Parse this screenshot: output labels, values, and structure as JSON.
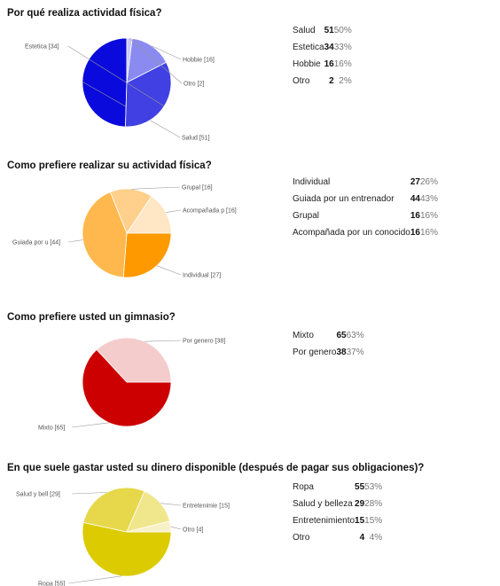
{
  "chart_data": [
    {
      "type": "pie",
      "title": "Por qué realiza actividad física?",
      "slices": [
        {
          "label": "Salud",
          "short": "Salud",
          "value": 51,
          "percent": "50%",
          "color": "#0A0ADC"
        },
        {
          "label": "Estetica",
          "short": "Estetica",
          "value": 34,
          "percent": "33%",
          "color": "#4040E3"
        },
        {
          "label": "Hobbie",
          "short": "Hobbie",
          "value": 16,
          "percent": "16%",
          "color": "#8A8AF0"
        },
        {
          "label": "Otro",
          "short": "Otro",
          "value": 2,
          "percent": "2%",
          "color": "#C8C8F8"
        }
      ]
    },
    {
      "type": "pie",
      "title": "Como prefiere realizar su actividad física?",
      "slices": [
        {
          "label": "Individual",
          "short": "Individual",
          "value": 27,
          "percent": "26%",
          "color": "#FF9900"
        },
        {
          "label": "Guiada por un entrenador",
          "short": "Guiada por u",
          "value": 44,
          "percent": "43%",
          "color": "#FFB84D"
        },
        {
          "label": "Grupal",
          "short": "Grupal",
          "value": 16,
          "percent": "16%",
          "color": "#FFCF8C"
        },
        {
          "label": "Acompañada por un conocido",
          "short": "Acompañada p",
          "value": 16,
          "percent": "16%",
          "color": "#FFE6C4"
        }
      ]
    },
    {
      "type": "pie",
      "title": "Como prefiere usted un gimnasio?",
      "slices": [
        {
          "label": "Mixto",
          "short": "Mixto",
          "value": 65,
          "percent": "63%",
          "color": "#CC0000"
        },
        {
          "label": "Por genero",
          "short": "Por genero",
          "value": 38,
          "percent": "37%",
          "color": "#F4CCCC"
        }
      ]
    },
    {
      "type": "pie",
      "title": "En que suele gastar usted su dinero disponible (después de pagar sus obligaciones)?",
      "slices": [
        {
          "label": "Ropa",
          "short": "Ropa",
          "value": 55,
          "percent": "53%",
          "color": "#DCCB00"
        },
        {
          "label": "Salud y belleza",
          "short": "Salud y bell",
          "value": 29,
          "percent": "28%",
          "color": "#E6D84A"
        },
        {
          "label": "Entretenimiento",
          "short": "Entretenimie",
          "value": 15,
          "percent": "15%",
          "color": "#F0E68C"
        },
        {
          "label": "Otro",
          "short": "Otro",
          "value": 4,
          "percent": "4%",
          "color": "#F8F1C8"
        }
      ]
    }
  ]
}
